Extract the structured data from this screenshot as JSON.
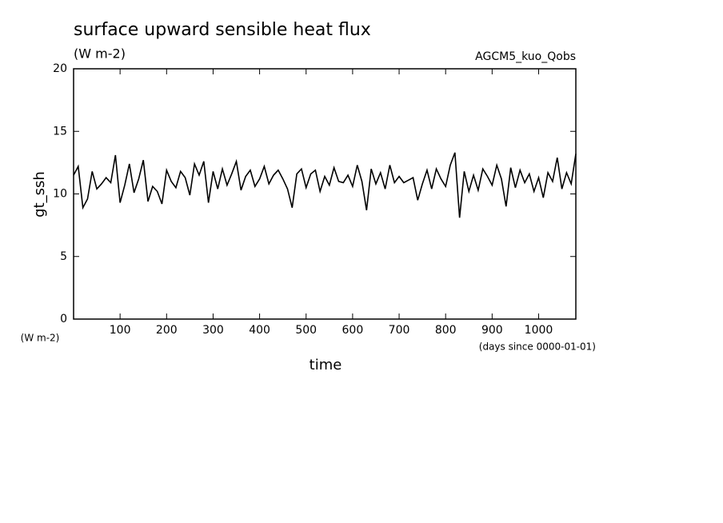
{
  "chart_data": {
    "type": "line",
    "title": "surface upward sensible heat flux",
    "subtitle": "(W m-2)",
    "annotation": "AGCM5_kuo_Qobs",
    "y_label": "gt_ssh",
    "y_units": "(W m-2)",
    "x_label": "time",
    "x_units": "(days since 0000-01-01)",
    "xlim": [
      0,
      1080
    ],
    "ylim": [
      0,
      20
    ],
    "xticks": [
      100,
      200,
      300,
      400,
      500,
      600,
      700,
      800,
      900,
      1000
    ],
    "yticks": [
      0,
      5,
      10,
      15,
      20
    ],
    "color": "#000000",
    "x": [
      0,
      10,
      20,
      30,
      40,
      50,
      60,
      70,
      80,
      90,
      100,
      110,
      120,
      130,
      140,
      150,
      160,
      170,
      180,
      190,
      200,
      210,
      220,
      230,
      240,
      250,
      260,
      270,
      280,
      290,
      300,
      310,
      320,
      330,
      340,
      350,
      360,
      370,
      380,
      390,
      400,
      410,
      420,
      430,
      440,
      450,
      460,
      470,
      480,
      490,
      500,
      510,
      520,
      530,
      540,
      550,
      560,
      570,
      580,
      590,
      600,
      610,
      620,
      630,
      640,
      650,
      660,
      670,
      680,
      690,
      700,
      710,
      720,
      730,
      740,
      750,
      760,
      770,
      780,
      790,
      800,
      810,
      820,
      830,
      840,
      850,
      860,
      870,
      880,
      890,
      900,
      910,
      920,
      930,
      940,
      950,
      960,
      970,
      980,
      990,
      1000,
      1010,
      1020,
      1030,
      1040,
      1050,
      1060,
      1070,
      1080
    ],
    "values": [
      11.5,
      12.2,
      8.9,
      9.6,
      11.8,
      10.4,
      10.8,
      11.3,
      10.9,
      13.1,
      9.3,
      10.7,
      12.4,
      10.1,
      11.2,
      12.7,
      9.4,
      10.6,
      10.2,
      9.2,
      11.9,
      11.0,
      10.5,
      11.8,
      11.3,
      9.9,
      12.4,
      11.5,
      12.6,
      9.3,
      11.8,
      10.4,
      12.0,
      10.7,
      11.6,
      12.6,
      10.3,
      11.4,
      11.9,
      10.6,
      11.2,
      12.2,
      10.8,
      11.5,
      11.9,
      11.2,
      10.4,
      8.9,
      11.6,
      12.0,
      10.5,
      11.6,
      11.9,
      10.2,
      11.4,
      10.7,
      12.1,
      11.0,
      10.9,
      11.5,
      10.6,
      12.3,
      11.0,
      8.7,
      12.0,
      10.8,
      11.7,
      10.4,
      12.3,
      10.9,
      11.4,
      10.9,
      11.1,
      11.3,
      9.5,
      10.8,
      11.9,
      10.4,
      12.0,
      11.2,
      10.6,
      12.3,
      13.3,
      8.1,
      11.8,
      10.2,
      11.5,
      10.3,
      12.0,
      11.4,
      10.7,
      12.3,
      11.2,
      9.0,
      12.1,
      10.5,
      11.9,
      10.9,
      11.6,
      10.2,
      11.3,
      9.7,
      11.7,
      11.0,
      12.9,
      10.4,
      11.7,
      10.8,
      13.2
    ]
  }
}
